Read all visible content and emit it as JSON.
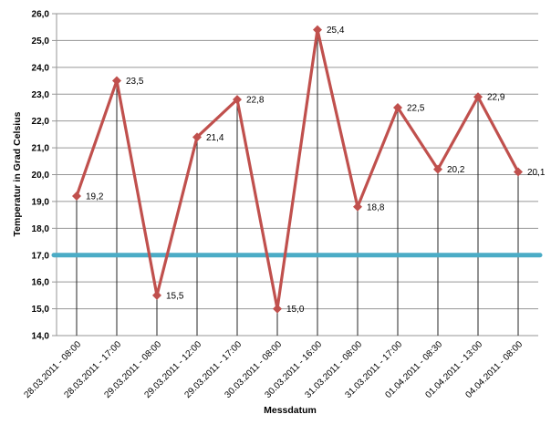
{
  "page": {
    "background": "#ffffff"
  },
  "chart_data": {
    "type": "line",
    "title": "",
    "xlabel": "Messdatum",
    "ylabel": "Temperatur in Grad Celsius",
    "categories": [
      "28.03.2011 - 08:00",
      "28.03.2011 - 17:00",
      "29.03.2011 - 08:00",
      "29.03.2011 - 12:00",
      "29.03.2011 - 17:00",
      "30.03.2011 - 08:00",
      "30.03.2011 - 16:00",
      "31.03.2011 - 08:00",
      "31.03.2011 - 17:00",
      "01.04.2011 - 08:30",
      "01.04.2011 - 13:00",
      "04.04.2011 - 08:00"
    ],
    "values": [
      19.2,
      23.5,
      15.5,
      21.4,
      22.8,
      15.0,
      25.4,
      18.8,
      22.5,
      20.2,
      22.9,
      20.1
    ],
    "value_labels": [
      "19,2",
      "23,5",
      "15,5",
      "21,4",
      "22,8",
      "15,0",
      "25,4",
      "18,8",
      "22,5",
      "20,2",
      "22,9",
      "20,1"
    ],
    "ylim": [
      14.0,
      26.0
    ],
    "ytick_step": 1.0,
    "ytick_labels": [
      "14,0",
      "15,0",
      "16,0",
      "17,0",
      "18,0",
      "19,0",
      "20,0",
      "21,0",
      "22,0",
      "23,0",
      "24,0",
      "25,0",
      "26,0"
    ],
    "grid": "on",
    "legend": "none",
    "marker": "diamond",
    "droplines": true,
    "reference_line": {
      "value": 17.0,
      "color": "#4bacc6"
    },
    "colors": {
      "series": "#c0504d",
      "grid": "#969696",
      "axis": "#969696",
      "dropline": "#262626",
      "text": "#000000"
    }
  }
}
